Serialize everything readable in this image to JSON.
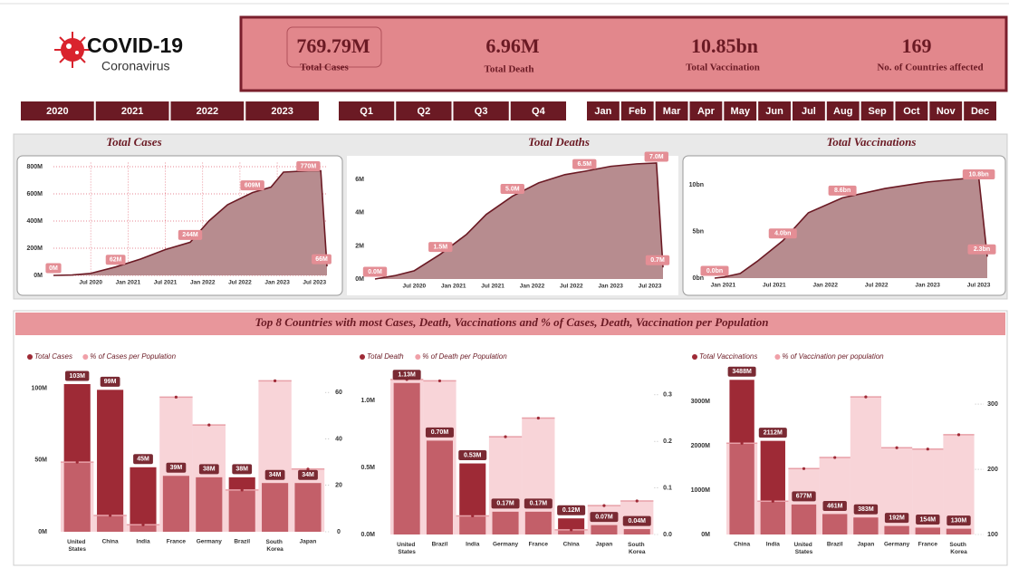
{
  "header": {
    "logo_title": "COVID-19",
    "logo_subtitle": "Coronavirus"
  },
  "kpis": [
    {
      "value": "769.79M",
      "label": "Total Cases"
    },
    {
      "value": "6.96M",
      "label": "Total Death"
    },
    {
      "value": "10.85bn",
      "label": "Total Vaccination"
    },
    {
      "value": "169",
      "label": "No. of Countries affected"
    }
  ],
  "filters": {
    "years": [
      "2020",
      "2021",
      "2022",
      "2023"
    ],
    "quarters": [
      "Q1",
      "Q2",
      "Q3",
      "Q4"
    ],
    "months": [
      "Jan",
      "Feb",
      "Mar",
      "Apr",
      "May",
      "Jun",
      "Jul",
      "Aug",
      "Sep",
      "Oct",
      "Nov",
      "Dec"
    ]
  },
  "section_title": "Top 8 Countries with most Cases, Death, Vaccinations and % of Cases, Death, Vaccination per Population",
  "chart_data": [
    {
      "type": "area",
      "title": "Total Cases",
      "grid": true,
      "x": [
        "2020-01",
        "2020-04",
        "2020-07",
        "2020-11",
        "2021-03",
        "2021-07",
        "2021-11",
        "2022-02",
        "2022-05",
        "2022-09",
        "2022-12",
        "2023-02",
        "2023-06",
        "2023-08",
        "2023-09"
      ],
      "series": [
        {
          "name": "Total Cases",
          "color": "#6b1a24",
          "values": [
            0,
            3,
            15,
            62,
            120,
            190,
            244,
            400,
            520,
            609,
            650,
            760,
            770,
            770,
            66
          ],
          "value_labels": [
            "0M",
            null,
            null,
            "62M",
            null,
            null,
            "244M",
            null,
            null,
            "609M",
            null,
            null,
            "770M",
            null,
            "66M"
          ]
        }
      ],
      "xlim": [
        "2020-01",
        "2023-09"
      ],
      "xticks": [
        {
          "value": "2020-07",
          "label": "Jul 2020"
        },
        {
          "value": "2021-01",
          "label": "Jan 2021"
        },
        {
          "value": "2021-07",
          "label": "Jul 2021"
        },
        {
          "value": "2022-01",
          "label": "Jan 2022"
        },
        {
          "value": "2022-07",
          "label": "Jul 2022"
        },
        {
          "value": "2023-01",
          "label": "Jan 2023"
        },
        {
          "value": "2023-07",
          "label": "Jul 2023"
        }
      ],
      "ylim": [
        0,
        830
      ],
      "yticks": [
        {
          "value": 0,
          "label": "0M"
        },
        {
          "value": 200,
          "label": "200M"
        },
        {
          "value": 400,
          "label": "400M"
        },
        {
          "value": 600,
          "label": "600M"
        },
        {
          "value": 800,
          "label": "800M"
        }
      ]
    },
    {
      "type": "area",
      "title": "Total Deaths",
      "grid": false,
      "x": [
        "2020-01",
        "2020-04",
        "2020-07",
        "2020-11",
        "2021-03",
        "2021-06",
        "2021-10",
        "2022-02",
        "2022-06",
        "2022-09",
        "2023-01",
        "2023-05",
        "2023-08",
        "2023-09"
      ],
      "series": [
        {
          "name": "Total Deaths",
          "color": "#6b1a24",
          "values": [
            0,
            0.2,
            0.5,
            1.5,
            2.7,
            3.9,
            5.0,
            5.8,
            6.3,
            6.5,
            6.8,
            6.95,
            7.0,
            0.7
          ],
          "value_labels": [
            "0.0M",
            null,
            null,
            "1.5M",
            null,
            null,
            "5.0M",
            null,
            null,
            "6.5M",
            null,
            null,
            "7.0M",
            "0.7M"
          ]
        }
      ],
      "xlim": [
        "2020-01",
        "2023-09"
      ],
      "xticks": [
        {
          "value": "2020-07",
          "label": "Jul 2020"
        },
        {
          "value": "2021-01",
          "label": "Jan 2021"
        },
        {
          "value": "2021-07",
          "label": "Jul 2021"
        },
        {
          "value": "2022-01",
          "label": "Jan 2022"
        },
        {
          "value": "2022-07",
          "label": "Jul 2022"
        },
        {
          "value": "2023-01",
          "label": "Jan 2023"
        },
        {
          "value": "2023-07",
          "label": "Jul 2023"
        }
      ],
      "ylim": [
        0,
        7.6
      ],
      "yticks": [
        {
          "value": 0,
          "label": "0M"
        },
        {
          "value": 2,
          "label": "2M"
        },
        {
          "value": 4,
          "label": "4M"
        },
        {
          "value": 6,
          "label": "6M"
        }
      ]
    },
    {
      "type": "area",
      "title": "Total Vaccinations",
      "grid": false,
      "x": [
        "2020-12",
        "2021-01",
        "2021-03",
        "2021-05",
        "2021-08",
        "2021-11",
        "2022-03",
        "2022-08",
        "2023-01",
        "2023-07",
        "2023-08"
      ],
      "series": [
        {
          "name": "Total Vaccinations",
          "color": "#6b1a24",
          "values": [
            0,
            0.1,
            0.5,
            1.8,
            4.0,
            7.0,
            8.6,
            9.6,
            10.3,
            10.8,
            2.3
          ],
          "value_labels": [
            "0.0bn",
            null,
            null,
            null,
            "4.0bn",
            null,
            "8.6bn",
            null,
            null,
            "10.8bn",
            "2.3bn"
          ]
        }
      ],
      "xlim": [
        "2020-12",
        "2023-08"
      ],
      "xticks": [
        {
          "value": "2021-01",
          "label": "Jan 2021"
        },
        {
          "value": "2021-07",
          "label": "Jul 2021"
        },
        {
          "value": "2022-01",
          "label": "Jan 2022"
        },
        {
          "value": "2022-07",
          "label": "Jul 2022"
        },
        {
          "value": "2023-01",
          "label": "Jan 2023"
        },
        {
          "value": "2023-07",
          "label": "Jul 2023"
        }
      ],
      "ylim": [
        0,
        11.5
      ],
      "yticks": [
        {
          "value": 0,
          "label": "0bn"
        },
        {
          "value": 5,
          "label": "5bn"
        },
        {
          "value": 10,
          "label": "10bn"
        }
      ]
    },
    {
      "type": "combo",
      "categories": [
        "United States",
        "China",
        "India",
        "France",
        "Germany",
        "Brazil",
        "South Korea",
        "Japan"
      ],
      "series": [
        {
          "name": "Total Cases",
          "type": "bar",
          "color": "#9e2a36",
          "values": [
            103,
            99,
            45,
            39,
            38,
            38,
            34,
            34
          ],
          "value_labels": [
            "103M",
            "99M",
            "45M",
            "39M",
            "38M",
            "38M",
            "34M",
            "34M"
          ]
        },
        {
          "name": "% of Cases per Population",
          "type": "step",
          "axis": "y2",
          "color": "#f0a0a8",
          "values": [
            30,
            7,
            3,
            58,
            46,
            18,
            65,
            27
          ]
        }
      ],
      "ylim": [
        0,
        115
      ],
      "yticks": [
        {
          "value": 0,
          "label": "0M"
        },
        {
          "value": 50,
          "label": "50M"
        },
        {
          "value": 100,
          "label": "100M"
        }
      ],
      "y2lim": [
        0,
        71
      ],
      "y2ticks": [
        0,
        20,
        40,
        60
      ]
    },
    {
      "type": "combo",
      "categories": [
        "United States",
        "Brazil",
        "India",
        "Germany",
        "France",
        "China",
        "Japan",
        "South Korea"
      ],
      "series": [
        {
          "name": "Total Death",
          "type": "bar",
          "color": "#9e2a36",
          "values": [
            1.13,
            0.7,
            0.53,
            0.17,
            0.17,
            0.12,
            0.07,
            0.04
          ],
          "value_labels": [
            "1.13M",
            "0.70M",
            "0.53M",
            "0.17M",
            "0.17M",
            "0.12M",
            "0.07M",
            "0.04M"
          ]
        },
        {
          "name": "% of Death per Population",
          "type": "step",
          "axis": "y2",
          "color": "#f0a0a8",
          "values": [
            0.333,
            0.33,
            0.04,
            0.21,
            0.25,
            0.01,
            0.062,
            0.072
          ]
        }
      ],
      "ylim": [
        0,
        1.25
      ],
      "yticks": [
        {
          "value": 0,
          "label": "0.0M"
        },
        {
          "value": 0.5,
          "label": "0.5M"
        },
        {
          "value": 1,
          "label": "1.0M"
        }
      ],
      "y2lim": [
        0,
        0.36
      ],
      "y2ticks": [
        {
          "value": 0,
          "label": "0.0"
        },
        0.1,
        0.2,
        0.3
      ]
    },
    {
      "type": "combo",
      "categories": [
        "China",
        "India",
        "United States",
        "Brazil",
        "Japan",
        "Germany",
        "France",
        "South Korea"
      ],
      "series": [
        {
          "name": "Total Vaccinations",
          "type": "bar",
          "color": "#9e2a36",
          "values": [
            3488,
            2112,
            677,
            461,
            383,
            192,
            154,
            130
          ],
          "value_labels": [
            "3488M",
            "2112M",
            "677M",
            "461M",
            "383M",
            "192M",
            "154M",
            "130M"
          ]
        },
        {
          "name": "% of Vaccination per population",
          "type": "step",
          "axis": "y2",
          "color": "#f0a0a8",
          "values": [
            240,
            151,
            201,
            218,
            311,
            233,
            231,
            253
          ]
        }
      ],
      "ylim": [
        0,
        3780
      ],
      "yticks": [
        {
          "value": 0,
          "label": "0M"
        },
        {
          "value": 1000,
          "label": "1000M"
        },
        {
          "value": 2000,
          "label": "2000M"
        },
        {
          "value": 3000,
          "label": "3000M"
        }
      ],
      "y2lim": [
        100,
        357
      ],
      "y2ticks": [
        100,
        200,
        300
      ]
    }
  ]
}
